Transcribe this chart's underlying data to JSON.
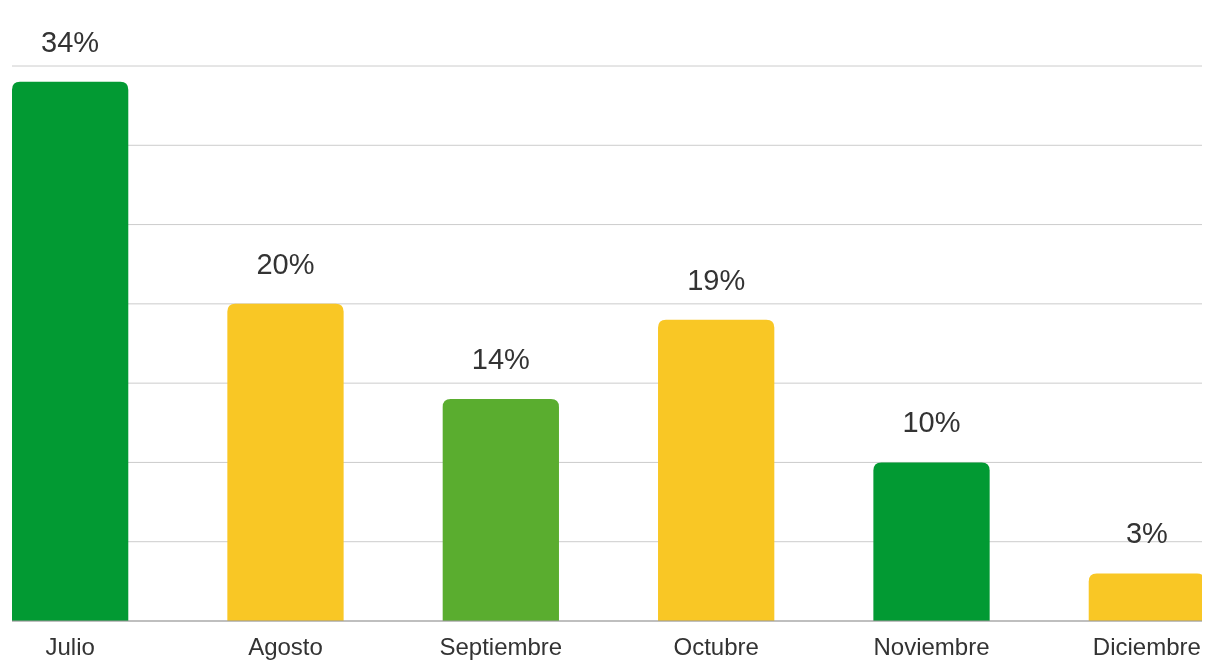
{
  "chart_data": {
    "type": "bar",
    "categories": [
      "Julio",
      "Agosto",
      "Septiembre",
      "Octubre",
      "Noviembre",
      "Diciembre"
    ],
    "values": [
      34,
      20,
      14,
      19,
      10,
      3
    ],
    "colors": [
      "#029a33",
      "#f9c725",
      "#5aad2f",
      "#f9c725",
      "#029a33",
      "#f9c725"
    ],
    "value_labels": [
      "34%",
      "20%",
      "14%",
      "19%",
      "10%",
      "3%"
    ],
    "ylim": [
      0,
      35
    ],
    "yticks": [
      {
        "value": 0,
        "label": null
      },
      {
        "value": 5,
        "label": null
      },
      {
        "value": 10,
        "label": null
      },
      {
        "value": 15,
        "label": null
      },
      {
        "value": 20,
        "label": null
      },
      {
        "value": 25,
        "label": null
      },
      {
        "value": 30,
        "label": null
      },
      {
        "value": 35,
        "label": null
      }
    ],
    "tick_labels": "x",
    "grid": "y"
  }
}
